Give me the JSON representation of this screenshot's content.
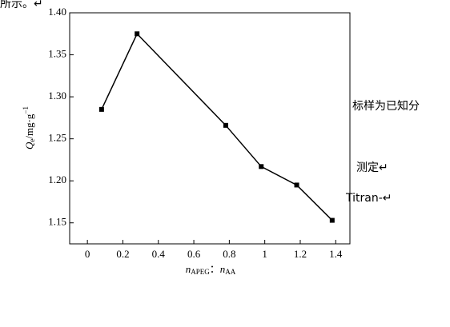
{
  "chart_data": {
    "type": "line",
    "y_label": {
      "var": "Q",
      "sub": "e",
      "unit": "/mg·g",
      "sup": "−1"
    },
    "x_label": {
      "var1": "n",
      "sub1": "APEG",
      "sep": "：",
      "var2": "n",
      "sub2": "AA"
    },
    "x": [
      0.08,
      0.28,
      0.78,
      0.98,
      1.18,
      1.38
    ],
    "series": [
      {
        "name": null,
        "color": "#000000",
        "values": [
          1.285,
          1.375,
          1.266,
          1.217,
          1.195,
          1.153
        ]
      }
    ],
    "xlim": [
      -0.1,
      1.48
    ],
    "xticks": [
      0,
      0.2,
      0.4,
      0.6,
      0.8,
      1.0,
      1.2,
      1.4
    ],
    "ylim": [
      1.125,
      1.4
    ],
    "yticks": [
      {
        "value": 1.4,
        "label": "1.40"
      },
      1.35,
      {
        "value": 1.3,
        "label": "1.30"
      },
      1.25,
      {
        "value": 1.2,
        "label": "1.20"
      },
      1.15
    ],
    "grid": false
  },
  "fragments": [
    "所示。↵",
    "标样为已知分",
    "测定↵",
    "Titran-↵"
  ]
}
